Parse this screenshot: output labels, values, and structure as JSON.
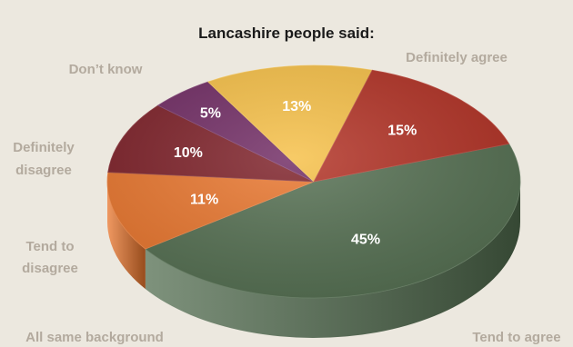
{
  "chart_data": {
    "type": "pie",
    "title": "Lancashire people said:",
    "slices": [
      {
        "name": "Tend to agree",
        "value": 45,
        "label": "45%",
        "color": "#536e50"
      },
      {
        "name": "All same background",
        "value": 11,
        "label": "11%",
        "color": "#e9752c"
      },
      {
        "name": "Tend to disagree",
        "value": 10,
        "label": "10%",
        "color": "#7c1e26"
      },
      {
        "name": "Definitely disagree",
        "value": 5,
        "label": "5%",
        "color": "#6f2962"
      },
      {
        "name": "Don’t know",
        "value": 13,
        "label": "13%",
        "color": "#f6bf45"
      },
      {
        "name": "Definitely agree",
        "value": 15,
        "label": "15%",
        "color": "#b12f22"
      }
    ],
    "category_labels": {
      "tend_to_agree": "Tend to agree",
      "all_same_background": "All same background",
      "tend_to_disagree": [
        "Tend to",
        "disagree"
      ],
      "definitely_disagree": [
        "Definitely",
        "disagree"
      ],
      "dont_know": "Don’t know",
      "definitely_agree": "Definitely agree"
    }
  },
  "colors": {
    "background": "#ece8df",
    "title_text": "#1a1a1a",
    "category_text": "#b3aa9e",
    "percent_text": "#ffffff"
  }
}
